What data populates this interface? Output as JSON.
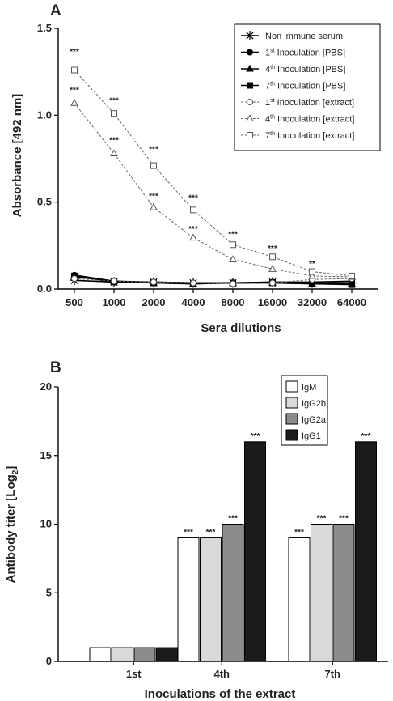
{
  "chart_data": [
    {
      "panel_label": "A",
      "type": "line",
      "xlabel": "Sera dilutions",
      "ylabel": "Absorbance [492 nm]",
      "ylim": [
        0,
        1.5
      ],
      "yticks": [
        "0.0",
        "0.5",
        "1.0",
        "1.5"
      ],
      "categories": [
        "500",
        "1000",
        "2000",
        "4000",
        "8000",
        "16000",
        "32000",
        "64000"
      ],
      "legend_position": "top-right",
      "series": [
        {
          "name": "Non immune serum",
          "marker": "asterisk",
          "line": "solid",
          "values": [
            0.05,
            0.04,
            0.04,
            0.035,
            0.035,
            0.04,
            0.035,
            0.035
          ]
        },
        {
          "name_parts": [
            "1",
            "st",
            " Inoculation [PBS]"
          ],
          "marker": "filled-circle",
          "line": "solid",
          "values": [
            0.08,
            0.045,
            0.04,
            0.035,
            0.035,
            0.04,
            0.04,
            0.045
          ]
        },
        {
          "name_parts": [
            "4",
            "th",
            " Inoculation [PBS]"
          ],
          "marker": "filled-triangle",
          "line": "solid",
          "values": [
            0.07,
            0.045,
            0.035,
            0.03,
            0.035,
            0.035,
            0.03,
            0.03
          ]
        },
        {
          "name_parts": [
            "7",
            "th",
            " Inoculation [PBS]"
          ],
          "marker": "filled-square",
          "line": "solid",
          "values": [
            0.075,
            0.04,
            0.035,
            0.03,
            0.035,
            0.035,
            0.03,
            0.025
          ]
        },
        {
          "name_parts": [
            "1",
            "st",
            " Inoculation [extract]"
          ],
          "marker": "open-circle",
          "line": "dotted",
          "values": [
            0.06,
            0.045,
            0.04,
            0.035,
            0.03,
            0.035,
            0.055,
            0.06
          ]
        },
        {
          "name_parts": [
            "4",
            "th",
            " Inoculation [extract]"
          ],
          "marker": "open-triangle",
          "line": "dotted",
          "values": [
            1.07,
            0.78,
            0.47,
            0.295,
            0.17,
            0.115,
            0.075,
            0.07
          ]
        },
        {
          "name_parts": [
            "7",
            "th",
            " Inoculation [extract]"
          ],
          "marker": "open-square",
          "line": "dotted",
          "values": [
            1.26,
            1.01,
            0.71,
            0.455,
            0.255,
            0.185,
            0.1,
            0.075
          ]
        }
      ],
      "annotations": [
        {
          "category": "500",
          "value": 1.35,
          "text": "***"
        },
        {
          "category": "500",
          "value": 1.13,
          "text": "***"
        },
        {
          "category": "1000",
          "value": 1.07,
          "text": "***"
        },
        {
          "category": "1000",
          "value": 0.84,
          "text": "***"
        },
        {
          "category": "2000",
          "value": 0.79,
          "text": "***"
        },
        {
          "category": "2000",
          "value": 0.52,
          "text": "***"
        },
        {
          "category": "4000",
          "value": 0.51,
          "text": "***"
        },
        {
          "category": "4000",
          "value": 0.33,
          "text": "***"
        },
        {
          "category": "8000",
          "value": 0.3,
          "text": "***"
        },
        {
          "category": "16000",
          "value": 0.22,
          "text": "***"
        },
        {
          "category": "32000",
          "value": 0.13,
          "text": "**"
        }
      ]
    },
    {
      "panel_label": "B",
      "type": "bar",
      "xlabel": "Inoculations of the extract",
      "ylabel_parts": [
        "Antibody titer [Log",
        "2",
        "]"
      ],
      "ylim": [
        0,
        20
      ],
      "yticks": [
        "0",
        "5",
        "10",
        "15",
        "20"
      ],
      "categories": [
        "1st",
        "4th",
        "7th"
      ],
      "legend_position": "top",
      "series": [
        {
          "name": "IgM",
          "color": "#ffffff",
          "values": [
            1,
            9,
            9
          ]
        },
        {
          "name": "IgG2b",
          "color": "#d9d9d9",
          "values": [
            1,
            9,
            10
          ]
        },
        {
          "name": "IgG2a",
          "color": "#8c8c8c",
          "values": [
            1,
            10,
            10
          ]
        },
        {
          "name": "IgG1",
          "color": "#1a1a1a",
          "values": [
            1,
            16,
            16
          ]
        }
      ],
      "bar_labels": [
        "",
        "",
        "",
        "",
        "***",
        "***",
        "***",
        "***",
        "***",
        "***",
        "***",
        "***"
      ]
    }
  ]
}
